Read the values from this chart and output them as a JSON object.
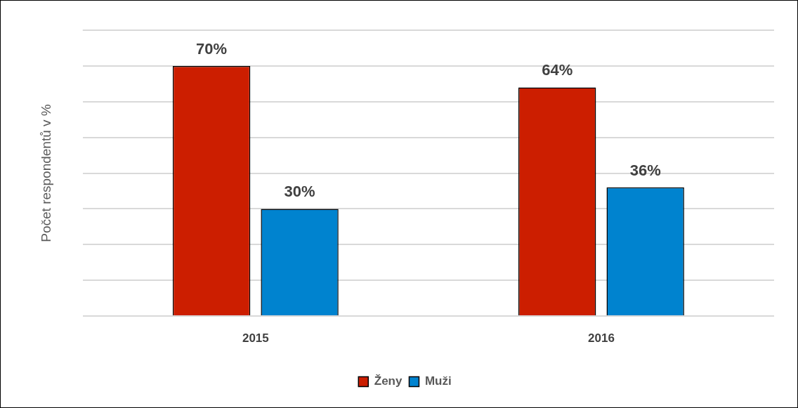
{
  "chart_data": {
    "type": "bar",
    "ylabel": "Počet respondentů v %",
    "categories": [
      "2015",
      "2016"
    ],
    "series": [
      {
        "name": "Ženy",
        "color": "#cc1e00",
        "values": [
          70,
          64
        ],
        "value_labels": [
          "70%",
          "64%"
        ]
      },
      {
        "name": "Muži",
        "color": "#0083cf",
        "values": [
          30,
          36
        ],
        "value_labels": [
          "30%",
          "36%"
        ]
      }
    ],
    "ylim": [
      0,
      80
    ],
    "yticks": [
      {
        "value": 0,
        "label": null
      },
      {
        "value": 10,
        "label": null
      },
      {
        "value": 20,
        "label": null
      },
      {
        "value": 30,
        "label": null
      },
      {
        "value": 40,
        "label": null
      },
      {
        "value": 50,
        "label": null
      },
      {
        "value": 60,
        "label": null
      },
      {
        "value": 70,
        "label": null
      }
    ],
    "grid": "y",
    "legend": "bottom",
    "tick_labels": "x"
  }
}
